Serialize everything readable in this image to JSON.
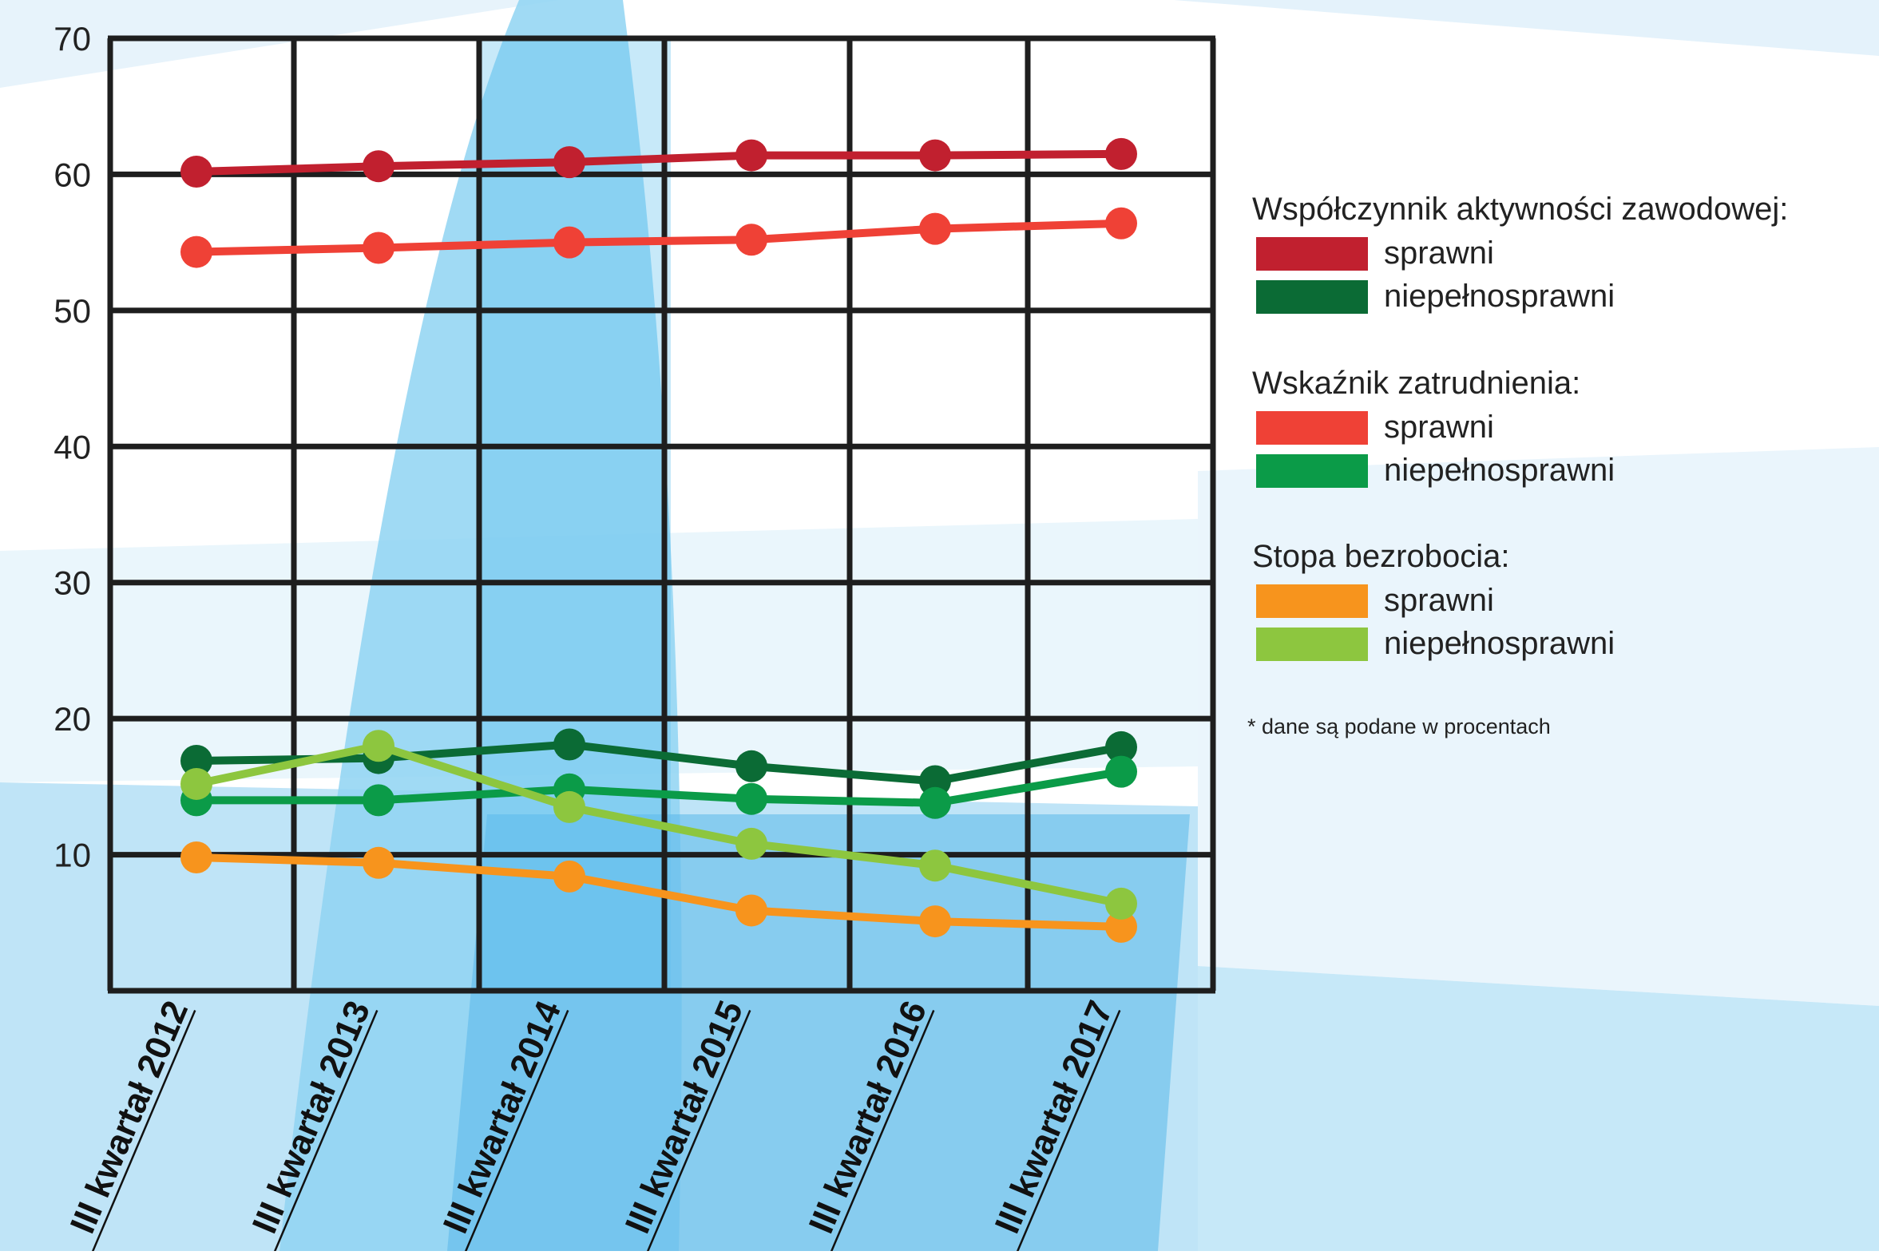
{
  "chart_data": {
    "type": "line",
    "categories": [
      "III kwartał 2012",
      "III kwartał 2013",
      "III kwartał 2014",
      "III kwartał 2015",
      "III kwartał 2016",
      "III kwartał 2017"
    ],
    "y_ticks": [
      "10",
      "20",
      "30",
      "40",
      "50",
      "60",
      "70"
    ],
    "ylim": [
      0,
      70
    ],
    "grid": true,
    "legend_position": "right",
    "legend_groups": [
      {
        "title": "Współczynnik aktywności zawodowej:",
        "series": [
          {
            "name": "sprawni",
            "color": "#c1202f",
            "values": [
              60.2,
              60.6,
              60.9,
              61.4,
              61.4,
              61.5
            ]
          },
          {
            "name": "niepełnosprawni",
            "color": "#0b6b35",
            "values": [
              16.9,
              17.1,
              18.1,
              16.5,
              15.4,
              17.9
            ]
          }
        ]
      },
      {
        "title": "Wskaźnik zatrudnienia:",
        "series": [
          {
            "name": "sprawni",
            "color": "#ef4136",
            "values": [
              54.3,
              54.6,
              55.0,
              55.2,
              56.0,
              56.4
            ]
          },
          {
            "name": "niepełnosprawni",
            "color": "#0b9b48",
            "values": [
              14.0,
              14.0,
              14.8,
              14.1,
              13.8,
              16.1
            ]
          }
        ]
      },
      {
        "title": "Stopa bezrobocia:",
        "series": [
          {
            "name": "sprawni",
            "color": "#f7941d",
            "values": [
              9.8,
              9.4,
              8.4,
              5.9,
              5.1,
              4.7
            ]
          },
          {
            "name": "niepełnosprawni",
            "color": "#8dc63f",
            "values": [
              15.2,
              18.0,
              13.5,
              10.8,
              9.2,
              6.4
            ]
          }
        ]
      }
    ],
    "footnote": "* dane są podane w procentach"
  }
}
